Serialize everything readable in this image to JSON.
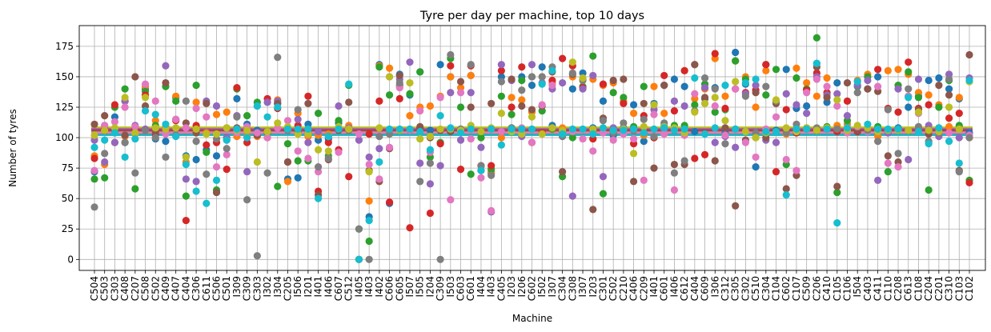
{
  "chart_data": {
    "type": "scatter",
    "title": "Tyre per day per machine, top 10 days",
    "xlabel": "Machine",
    "ylabel": "Number of tyres",
    "ylim": [
      -9,
      192
    ],
    "yticks": [
      0,
      25,
      50,
      75,
      100,
      125,
      150,
      175
    ],
    "grid": true,
    "categories": [
      "C504",
      "C503",
      "C303",
      "C408",
      "C207",
      "C508",
      "C502",
      "C409",
      "C407",
      "C404",
      "C306",
      "C611",
      "C506",
      "C501",
      "I309",
      "C309",
      "C303",
      "I302",
      "I304",
      "C205",
      "I506",
      "I201",
      "I401",
      "I406",
      "C607",
      "C512",
      "I405",
      "I403",
      "I402",
      "C606",
      "C605",
      "I507",
      "I505",
      "I204",
      "C309",
      "I503",
      "C603",
      "C601",
      "I404",
      "I403",
      "C405",
      "I203",
      "I206",
      "C602",
      "I502",
      "I307",
      "C304",
      "C308",
      "I307",
      "I203",
      "C301",
      "C502",
      "C210",
      "C406",
      "C209",
      "I401",
      "C601",
      "I406",
      "C612",
      "C404",
      "C609",
      "I306",
      "C312",
      "C305",
      "C302",
      "C510",
      "C304",
      "C104",
      "C602",
      "C107",
      "C509",
      "C206",
      "C410",
      "C105",
      "C106",
      "I504",
      "C403",
      "C411",
      "C110",
      "C208",
      "C613",
      "C108",
      "C204",
      "C201",
      "C310",
      "C103",
      "C102"
    ],
    "series_colors": [
      "#1f77b4",
      "#ff7f0e",
      "#2ca02c",
      "#d62728",
      "#9467bd",
      "#8c564b",
      "#e377c2",
      "#7f7f7f",
      "#bcbd22",
      "#17becf"
    ],
    "mean_lines": [
      106,
      107,
      108,
      106.5,
      107.5,
      105.5,
      104.5,
      103,
      108.5,
      102
    ],
    "series": [
      {
        "values": [
          72,
          110,
          117,
          96,
          108,
          140,
          99,
          97,
          133,
          85,
          82,
          90,
          85,
          100,
          132,
          111,
          106,
          100,
          128,
          66,
          67,
          111,
          98,
          99,
          112,
          106,
          0,
          35,
          160,
          46,
          152,
          135,
          154,
          106,
          160,
          150,
          107,
          151,
          105,
          71,
          150,
          108,
          150,
          143,
          158,
          110,
          105,
          140,
          153,
          108,
          130,
          102,
          108,
          127,
          97,
          128,
          143,
          148,
          142,
          105,
          132,
          141,
          104,
          170,
          144,
          76,
          160,
          106,
          156,
          124,
          126,
          161,
          129,
          145,
          105,
          105,
          140,
          150,
          105,
          108,
          125,
          134,
          147,
          149,
          140,
          132,
          104
        ]
      },
      {
        "values": [
          85,
          78,
          96,
          101,
          103,
          142,
          114,
          109,
          134,
          80,
          129,
          104,
          119,
          121,
          101,
          101,
          101,
          100,
          131,
          64,
          120,
          101,
          102,
          103,
          107,
          110,
          0,
          48,
          159,
          157,
          142,
          118,
          125,
          126,
          134,
          150,
          141,
          151,
          100,
          72,
          100,
          133,
          131,
          121,
          150,
          145,
          108,
          150,
          148,
          148,
          143,
          145,
          130,
          120,
          102,
          142,
          120,
          107,
          155,
          132,
          140,
          165,
          134,
          163,
          150,
          125,
          155,
          105,
          103,
          157,
          145,
          134,
          149,
          110,
          111,
          147,
          152,
          101,
          155,
          156,
          152,
          137,
          135,
          127,
          109,
          133,
          100
        ]
      },
      {
        "values": [
          66,
          67,
          125,
          140,
          58,
          138,
          110,
          142,
          130,
          52,
          143,
          88,
          57,
          98,
          140,
          118,
          129,
          104,
          60,
          95,
          81,
          81,
          120,
          85,
          114,
          143,
          25,
          15,
          158,
          135,
          143,
          136,
          154,
          84,
          96,
          165,
          125,
          70,
          100,
          74,
          134,
          119,
          147,
          150,
          122,
          107,
          68,
          100,
          142,
          167,
          54,
          137,
          133,
          109,
          142,
          100,
          110,
          110,
          110,
          127,
          144,
          121,
          123,
          163,
          148,
          100,
          135,
          156,
          78,
          149,
          140,
          182,
          109,
          55,
          114,
          142,
          150,
          109,
          72,
          143,
          154,
          133,
          57,
          125,
          147,
          110,
          65
        ]
      },
      {
        "values": [
          83,
          107,
          127,
          130,
          108,
          135,
          103,
          107,
          114,
          32,
          110,
          94,
          96,
          74,
          141,
          96,
          102,
          132,
          124,
          80,
          110,
          134,
          56,
          96,
          90,
          68,
          0,
          103,
          130,
          47,
          132,
          26,
          108,
          38,
          95,
          159,
          74,
          159,
          77,
          77,
          155,
          125,
          158,
          96,
          104,
          147,
          165,
          159,
          141,
          99,
          144,
          104,
          128,
          95,
          118,
          100,
          151,
          122,
          155,
          83,
          86,
          169,
          124,
          140,
          137,
          139,
          160,
          72,
          123,
          104,
          139,
          153,
          137,
          105,
          130,
          105,
          108,
          156,
          124,
          121,
          162,
          124,
          127,
          108,
          116,
          120,
          63
        ]
      },
      {
        "values": [
          98,
          80,
          96,
          130,
          110,
          107,
          105,
          159,
          102,
          66,
          64,
          130,
          126,
          100,
          118,
          72,
          126,
          129,
          130,
          108,
          115,
          96,
          105,
          101,
          126,
          108,
          98,
          84,
          91,
          150,
          148,
          162,
          79,
          62,
          77,
          137,
          98,
          137,
          92,
          39,
          160,
          147,
          101,
          160,
          145,
          140,
          145,
          52,
          140,
          151,
          68,
          108,
          107,
          107,
          104,
          123,
          107,
          130,
          126,
          160,
          141,
          96,
          101,
          92,
          136,
          143,
          98,
          96,
          136,
          127,
          120,
          150,
          135,
          136,
          118,
          143,
          147,
          65,
          104,
          140,
          82,
          148,
          110,
          101,
          152,
          100,
          149
        ]
      },
      {
        "values": [
          111,
          118,
          106,
          102,
          150,
          126,
          105,
          145,
          115,
          112,
          104,
          128,
          55,
          108,
          108,
          108,
          102,
          105,
          128,
          80,
          105,
          128,
          53,
          82,
          106,
          129,
          0,
          73,
          64,
          91,
          151,
          106,
          109,
          100,
          106,
          105,
          146,
          125,
          73,
          128,
          105,
          148,
          126,
          123,
          126,
          154,
          72,
          152,
          148,
          41,
          116,
          147,
          148,
          64,
          128,
          75,
          143,
          78,
          78,
          160,
          133,
          81,
          108,
          44,
          98,
          137,
          100,
          128,
          58,
          69,
          108,
          158,
          133,
          60,
          145,
          106,
          140,
          138,
          85,
          80,
          134,
          123,
          103,
          143,
          135,
          73,
          168
        ]
      },
      {
        "values": [
          73,
          110,
          113,
          125,
          109,
          144,
          130,
          103,
          115,
          108,
          124,
          117,
          76,
          86,
          104,
          109,
          104,
          100,
          108,
          114,
          89,
          83,
          72,
          83,
          88,
          107,
          103,
          78,
          66,
          92,
          141,
          106,
          122,
          88,
          133,
          49,
          137,
          99,
          67,
          40,
          105,
          105,
          108,
          96,
          127,
          143,
          101,
          105,
          99,
          89,
          104,
          98,
          103,
          99,
          65,
          119,
          103,
          57,
          102,
          136,
          128,
          126,
          102,
          140,
          96,
          84,
          107,
          117,
          82,
          73,
          137,
          148,
          142,
          126,
          104,
          109,
          105,
          142,
          79,
          76,
          134,
          120,
          96,
          108,
          104,
          107,
          102
        ]
      },
      {
        "values": [
          43,
          87,
          104,
          96,
          71,
          106,
          100,
          84,
          102,
          130,
          97,
          70,
          99,
          91,
          117,
          49,
          3,
          71,
          166,
          106,
          123,
          104,
          76,
          83,
          107,
          106,
          25,
          0,
          101,
          103,
          145,
          107,
          64,
          79,
          0,
          168,
          107,
          160,
          77,
          69,
          146,
          108,
          139,
          150,
          150,
          158,
          101,
          153,
          147,
          103,
          114,
          104,
          112,
          106,
          115,
          101,
          112,
          71,
          81,
          122,
          149,
          140,
          95,
          107,
          134,
          104,
          142,
          130,
          104,
          111,
          107,
          108,
          107,
          107,
          106,
          137,
          106,
          97,
          123,
          87,
          140,
          109,
          97,
          104,
          148,
          72,
          100
        ]
      },
      {
        "values": [
          102,
          106,
          108,
          133,
          104,
          133,
          108,
          107,
          108,
          84,
          107,
          103,
          103,
          108,
          106,
          106,
          80,
          105,
          112,
          109,
          103,
          103,
          90,
          89,
          109,
          107,
          0,
          72,
          108,
          150,
          106,
          145,
          99,
          101,
          107,
          107,
          106,
          110,
          105,
          108,
          120,
          105,
          103,
          117,
          103,
          108,
          106,
          162,
          149,
          107,
          108,
          106,
          107,
          87,
          109,
          127,
          109,
          108,
          104,
          121,
          128,
          133,
          114,
          146,
          105,
          100,
          104,
          131,
          108,
          105,
          108,
          106,
          108,
          131,
          106,
          110,
          108,
          105,
          106,
          106,
          106,
          121,
          106,
          105,
          125,
          107,
          146
        ]
      },
      {
        "values": [
          92,
          98,
          104,
          84,
          99,
          122,
          119,
          111,
          101,
          78,
          56,
          46,
          65,
          98,
          107,
          100,
          126,
          117,
          125,
          107,
          107,
          107,
          50,
          101,
          107,
          144,
          0,
          32,
          80,
          107,
          107,
          107,
          105,
          90,
          118,
          108,
          104,
          107,
          73,
          107,
          94,
          107,
          107,
          107,
          144,
          155,
          103,
          107,
          107,
          103,
          108,
          106,
          106,
          107,
          104,
          107,
          108,
          106,
          107,
          149,
          103,
          108,
          143,
          107,
          145,
          148,
          105,
          105,
          53,
          107,
          107,
          161,
          107,
          30,
          108,
          146,
          111,
          107,
          107,
          107,
          133,
          105,
          95,
          108,
          97,
          79,
          147
        ]
      }
    ]
  }
}
